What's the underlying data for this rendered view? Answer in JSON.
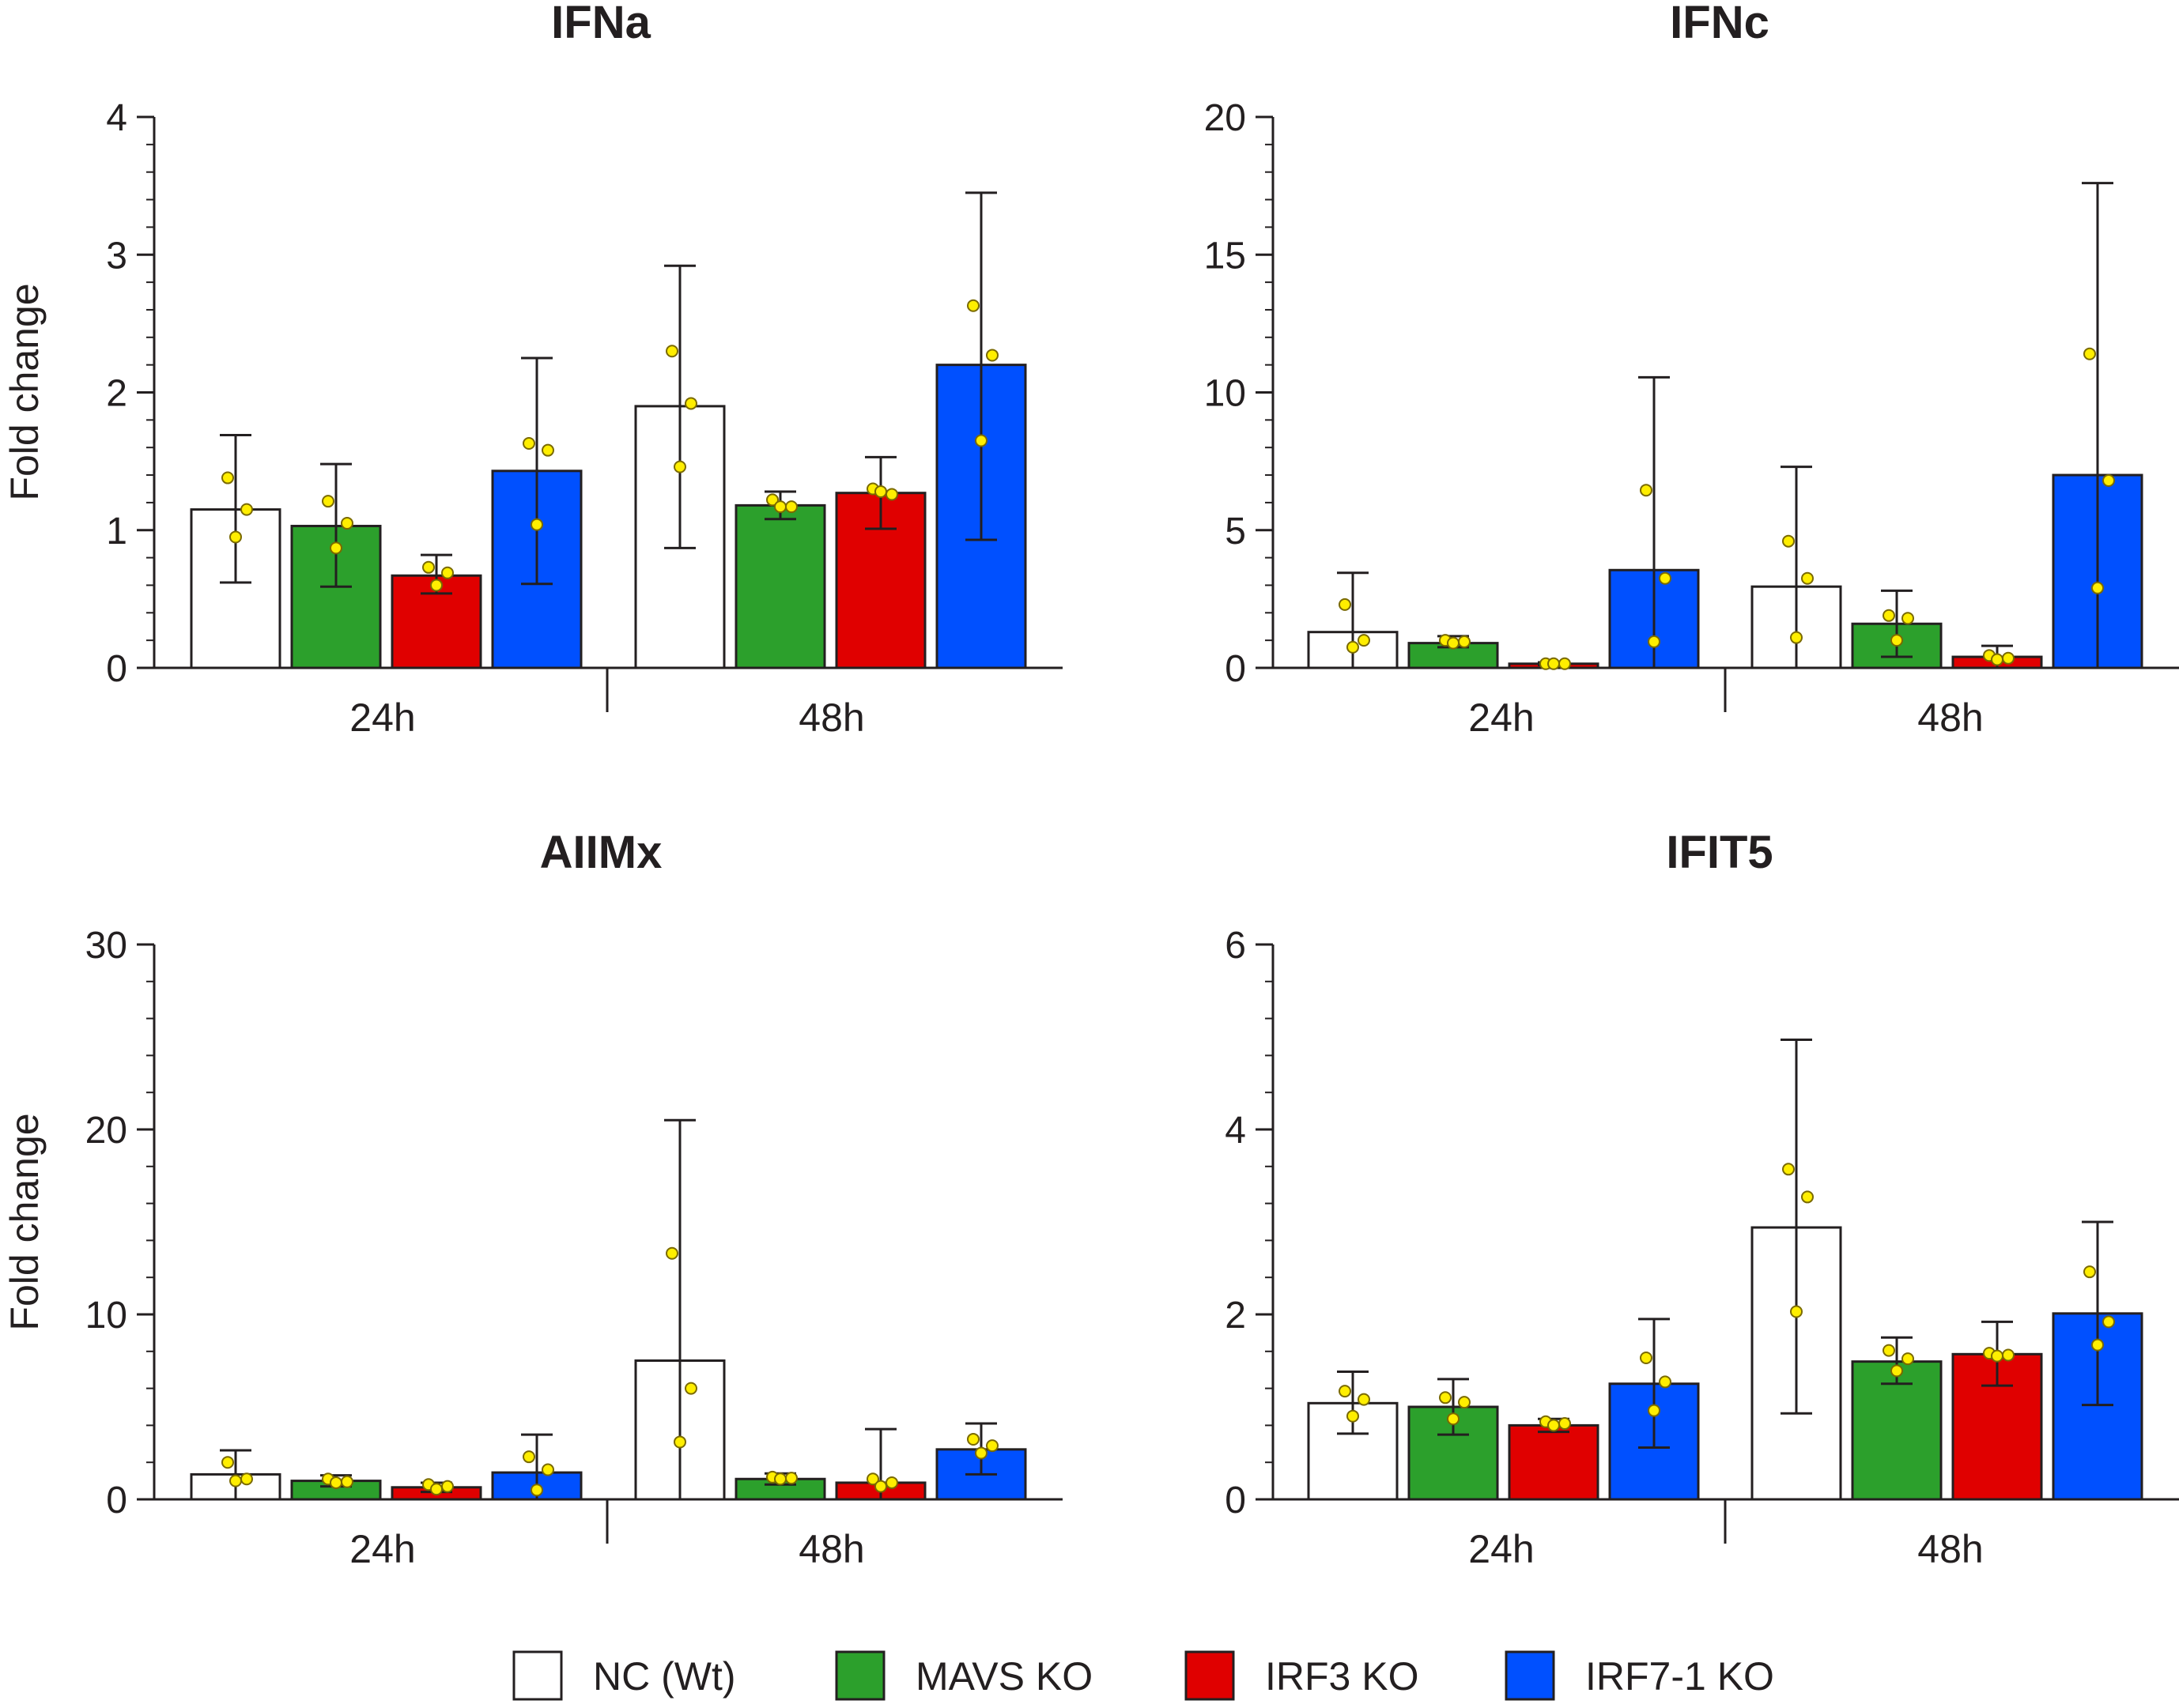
{
  "legend": [
    {
      "label": "NC (Wt)",
      "color": "#ffffff"
    },
    {
      "label": "MAVS KO",
      "color": "#2ca02c"
    },
    {
      "label": "IRF3 KO",
      "color": "#e00000"
    },
    {
      "label": "IRF7-1 KO",
      "color": "#0050ff"
    }
  ],
  "chart_data": [
    {
      "type": "bar",
      "title": "IFNa",
      "ylabel": "Fold change",
      "ylim": [
        0,
        4
      ],
      "yticks": [
        0,
        1,
        2,
        3,
        4
      ],
      "categories": [
        "24h",
        "48h"
      ],
      "series": [
        {
          "name": "NC (Wt)",
          "values": [
            1.15,
            1.9
          ],
          "err_low": [
            0.62,
            0.87
          ],
          "err_high": [
            1.69,
            2.92
          ],
          "points": [
            [
              1.38,
              1.15,
              0.95
            ],
            [
              2.3,
              1.92,
              1.46
            ]
          ]
        },
        {
          "name": "MAVS KO",
          "values": [
            1.03,
            1.18
          ],
          "err_low": [
            0.59,
            1.08
          ],
          "err_high": [
            1.48,
            1.28
          ],
          "points": [
            [
              1.21,
              1.05,
              0.87
            ],
            [
              1.22,
              1.17,
              1.17
            ]
          ]
        },
        {
          "name": "IRF3 KO",
          "values": [
            0.67,
            1.27
          ],
          "err_low": [
            0.54,
            1.01
          ],
          "err_high": [
            0.82,
            1.53
          ],
          "points": [
            [
              0.73,
              0.69,
              0.6
            ],
            [
              1.3,
              1.26,
              1.28
            ]
          ]
        },
        {
          "name": "IRF7-1 KO",
          "values": [
            1.43,
            2.2
          ],
          "err_low": [
            0.61,
            0.93
          ],
          "err_high": [
            2.25,
            3.45
          ],
          "points": [
            [
              1.63,
              1.58,
              1.04
            ],
            [
              2.63,
              2.27,
              1.65
            ]
          ]
        }
      ]
    },
    {
      "type": "bar",
      "title": "IFNc",
      "ylabel": "",
      "ylim": [
        0,
        20
      ],
      "yticks": [
        0,
        5,
        10,
        15,
        20
      ],
      "categories": [
        "24h",
        "48h"
      ],
      "series": [
        {
          "name": "NC (Wt)",
          "values": [
            1.3,
            2.95
          ],
          "err_low": [
            0,
            0
          ],
          "err_high": [
            3.45,
            7.3
          ],
          "points": [
            [
              2.3,
              1.0,
              0.75
            ],
            [
              4.6,
              3.25,
              1.1
            ]
          ]
        },
        {
          "name": "MAVS KO",
          "values": [
            0.9,
            1.6
          ],
          "err_low": [
            0.75,
            0.4
          ],
          "err_high": [
            1.15,
            2.8
          ],
          "points": [
            [
              1.0,
              0.95,
              0.9
            ],
            [
              1.9,
              1.8,
              1.0
            ]
          ]
        },
        {
          "name": "IRF3 KO",
          "values": [
            0.15,
            0.4
          ],
          "err_low": [
            0.1,
            0.0
          ],
          "err_high": [
            0.2,
            0.8
          ],
          "points": [
            [
              0.15,
              0.15,
              0.15
            ],
            [
              0.45,
              0.35,
              0.3
            ]
          ]
        },
        {
          "name": "IRF7-1 KO",
          "values": [
            3.55,
            7.0
          ],
          "err_low": [
            0,
            0
          ],
          "err_high": [
            10.55,
            17.6
          ],
          "points": [
            [
              6.45,
              3.25,
              0.95
            ],
            [
              11.4,
              6.8,
              2.9
            ]
          ]
        }
      ]
    },
    {
      "type": "bar",
      "title": "AIIMx",
      "ylabel": "Fold change",
      "ylim": [
        0,
        30
      ],
      "yticks": [
        0,
        10,
        20,
        30
      ],
      "categories": [
        "24h",
        "48h"
      ],
      "series": [
        {
          "name": "NC (Wt)",
          "values": [
            1.35,
            7.5
          ],
          "err_low": [
            0,
            0
          ],
          "err_high": [
            2.65,
            20.5
          ],
          "points": [
            [
              2.0,
              1.1,
              1.0
            ],
            [
              13.3,
              6.0,
              3.1
            ]
          ]
        },
        {
          "name": "MAVS KO",
          "values": [
            1.0,
            1.1
          ],
          "err_low": [
            0.7,
            0.8
          ],
          "err_high": [
            1.3,
            1.4
          ],
          "points": [
            [
              1.1,
              0.95,
              0.9
            ],
            [
              1.2,
              1.15,
              1.1
            ]
          ]
        },
        {
          "name": "IRF3 KO",
          "values": [
            0.65,
            0.9
          ],
          "err_low": [
            0.4,
            0
          ],
          "err_high": [
            0.9,
            3.8
          ],
          "points": [
            [
              0.8,
              0.7,
              0.55
            ],
            [
              1.1,
              0.9,
              0.7
            ]
          ]
        },
        {
          "name": "IRF7-1 KO",
          "values": [
            1.45,
            2.7
          ],
          "err_low": [
            0,
            1.35
          ],
          "err_high": [
            3.5,
            4.1
          ],
          "points": [
            [
              2.3,
              1.6,
              0.5
            ],
            [
              3.25,
              2.9,
              2.5
            ]
          ]
        }
      ]
    },
    {
      "type": "bar",
      "title": "IFIT5",
      "ylabel": "",
      "ylim": [
        0,
        6
      ],
      "yticks": [
        0,
        2,
        4,
        6
      ],
      "categories": [
        "24h",
        "48h"
      ],
      "series": [
        {
          "name": "NC (Wt)",
          "values": [
            1.04,
            2.94
          ],
          "err_low": [
            0.71,
            0.93
          ],
          "err_high": [
            1.38,
            4.97
          ],
          "points": [
            [
              1.17,
              1.08,
              0.9
            ],
            [
              3.57,
              3.27,
              2.03
            ]
          ]
        },
        {
          "name": "MAVS KO",
          "values": [
            1.0,
            1.49
          ],
          "err_low": [
            0.7,
            1.25
          ],
          "err_high": [
            1.3,
            1.75
          ],
          "points": [
            [
              1.1,
              1.05,
              0.87
            ],
            [
              1.61,
              1.52,
              1.39
            ]
          ]
        },
        {
          "name": "IRF3 KO",
          "values": [
            0.8,
            1.57
          ],
          "err_low": [
            0.73,
            1.23
          ],
          "err_high": [
            0.87,
            1.92
          ],
          "points": [
            [
              0.84,
              0.82,
              0.8
            ],
            [
              1.58,
              1.56,
              1.55
            ]
          ]
        },
        {
          "name": "IRF7-1 KO",
          "values": [
            1.25,
            2.01
          ],
          "err_low": [
            0.56,
            1.02
          ],
          "err_high": [
            1.95,
            3.0
          ],
          "points": [
            [
              1.53,
              1.27,
              0.96
            ],
            [
              2.46,
              1.92,
              1.67
            ]
          ]
        }
      ]
    }
  ]
}
